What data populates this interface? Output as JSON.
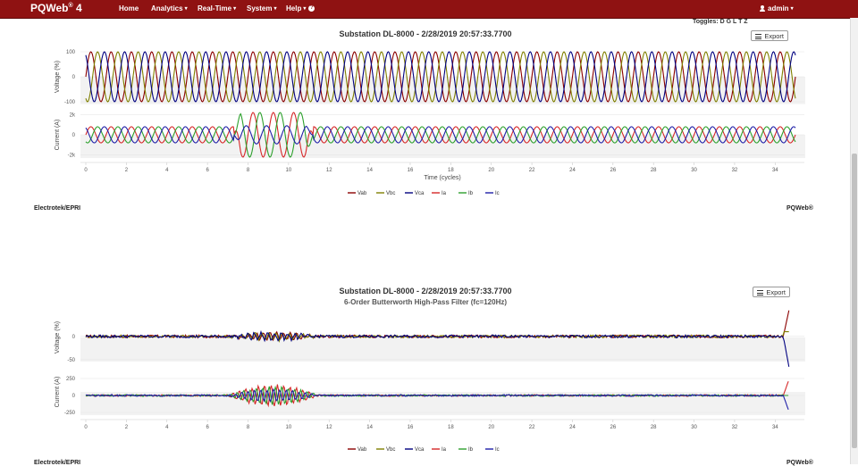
{
  "nav": {
    "brand": "PQWeb",
    "brand_sup": "®",
    "brand_version": " 4",
    "items": [
      {
        "label": "Home",
        "has_caret": false
      },
      {
        "label": "Analytics",
        "has_caret": true
      },
      {
        "label": "Real-Time",
        "has_caret": true
      },
      {
        "label": "System",
        "has_caret": true
      },
      {
        "label": "Help",
        "has_caret": true,
        "help_icon": "?"
      }
    ],
    "user": {
      "label": "admin",
      "icon": "user-icon"
    },
    "bg_color": "#8f1212"
  },
  "toggles_label": "Toggles: D G L T Z",
  "export_label": "Export",
  "legend": [
    {
      "name": "Vab",
      "color": "#8b0000"
    },
    {
      "name": "Vbc",
      "color": "#808000"
    },
    {
      "name": "Vca",
      "color": "#000080"
    },
    {
      "name": "Ia",
      "color": "#d62728"
    },
    {
      "name": "Ib",
      "color": "#2ca02c"
    },
    {
      "name": "Ic",
      "color": "#1f1fa8"
    }
  ],
  "chart_data": [
    {
      "type": "line",
      "title": "Substation DL-8000 - 2/28/2019 20:57:33.7700",
      "subtitle": "",
      "xlabel": "Time (cycles)",
      "xlim": [
        0,
        35
      ],
      "xticks": [
        "0",
        "2",
        "4",
        "6",
        "8",
        "10",
        "12",
        "14",
        "16",
        "18",
        "20",
        "22",
        "24",
        "26",
        "28",
        "30",
        "32",
        "34"
      ],
      "grid": true,
      "legend_position": "bottom",
      "panels": [
        {
          "ylabel": "Voltage (%)",
          "ylim": [
            -100,
            100
          ],
          "yticks": [
            "100",
            "0",
            "-100"
          ],
          "series": [
            {
              "name": "Vab",
              "amplitude": 100,
              "phase_deg": 0
            },
            {
              "name": "Vbc",
              "amplitude": 100,
              "phase_deg": -120
            },
            {
              "name": "Vca",
              "amplitude": 100,
              "phase_deg": 120
            }
          ]
        },
        {
          "ylabel": "Current (A)",
          "ylim": [
            -2000,
            2000
          ],
          "yticks": [
            "2k",
            "0",
            "-2k"
          ],
          "series": [
            {
              "name": "Ia",
              "amplitude": 800,
              "fault_amplitude": 2200,
              "fault_cycles": [
                7.3,
                11.2
              ]
            },
            {
              "name": "Ib",
              "amplitude": 800,
              "fault_amplitude": 2200,
              "fault_cycles": [
                7.3,
                11.2
              ]
            },
            {
              "name": "Ic",
              "amplitude": 800,
              "fault_amplitude": 900,
              "fault_cycles": [
                7.3,
                11.2
              ]
            }
          ]
        }
      ]
    },
    {
      "type": "line",
      "title": "Substation DL-8000 - 2/28/2019 20:57:33.7700",
      "subtitle": "6-Order Butterworth High-Pass Filter (fc=120Hz)",
      "xlabel": "",
      "xlim": [
        0,
        35
      ],
      "xticks": [
        "0",
        "2",
        "4",
        "6",
        "8",
        "10",
        "12",
        "14",
        "16",
        "18",
        "20",
        "22",
        "24",
        "26",
        "28",
        "30",
        "32",
        "34"
      ],
      "grid": true,
      "legend_position": "bottom",
      "panels": [
        {
          "ylabel": "Voltage (%)",
          "ylim": [
            -50,
            50
          ],
          "yticks": [
            "0",
            "-50"
          ],
          "series": [
            {
              "name": "Vab",
              "noise": 3
            },
            {
              "name": "Vbc",
              "noise": 3
            },
            {
              "name": "Vca",
              "noise": 3
            }
          ]
        },
        {
          "ylabel": "Current (A)",
          "ylim": [
            -250,
            250
          ],
          "yticks": [
            "250",
            "0",
            "-250"
          ],
          "series": [
            {
              "name": "Ia",
              "noise": 12,
              "burst_peak": 220
            },
            {
              "name": "Ib",
              "noise": 12,
              "burst_peak": 180
            },
            {
              "name": "Ic",
              "noise": 12,
              "burst_peak": 120
            }
          ]
        }
      ]
    }
  ],
  "footer_left": "Electrotek/EPRI",
  "footer_right": "PQWeb®"
}
